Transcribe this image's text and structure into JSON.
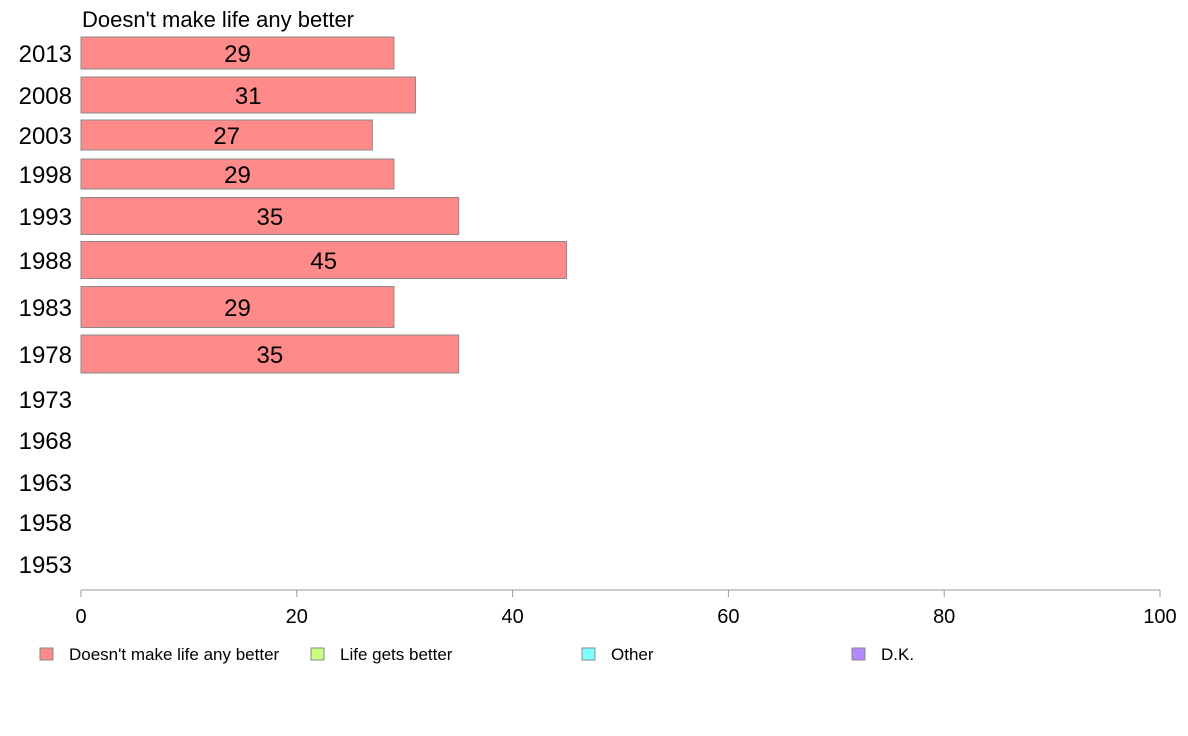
{
  "chart_data": {
    "type": "bar",
    "orientation": "horizontal",
    "title": "Doesn't make life any better",
    "categories": [
      "2013",
      "2008",
      "2003",
      "1998",
      "1993",
      "1988",
      "1983",
      "1978",
      "1973",
      "1968",
      "1963",
      "1958",
      "1953"
    ],
    "series": [
      {
        "name": "Doesn't make life any better",
        "color": "#ff8a8a",
        "values": [
          29,
          31,
          27,
          29,
          35,
          45,
          29,
          35,
          null,
          null,
          null,
          null,
          null
        ]
      }
    ],
    "data_labels": [
      "29",
      "31",
      "27",
      "29",
      "35",
      "45",
      "29",
      "35",
      "",
      "",
      "",
      "",
      ""
    ],
    "xlim": [
      0,
      100
    ],
    "xticks": [
      "0",
      "20",
      "40",
      "60",
      "80",
      "100"
    ],
    "grid": false,
    "legend": {
      "position": "bottom",
      "items": [
        {
          "label": "Doesn't make life any better",
          "color": "#ff8a8a"
        },
        {
          "label": "Life gets better",
          "color": "#c8ff80"
        },
        {
          "label": "Other",
          "color": "#80ffff"
        },
        {
          "label": "D.K.",
          "color": "#b388ff"
        }
      ]
    }
  }
}
